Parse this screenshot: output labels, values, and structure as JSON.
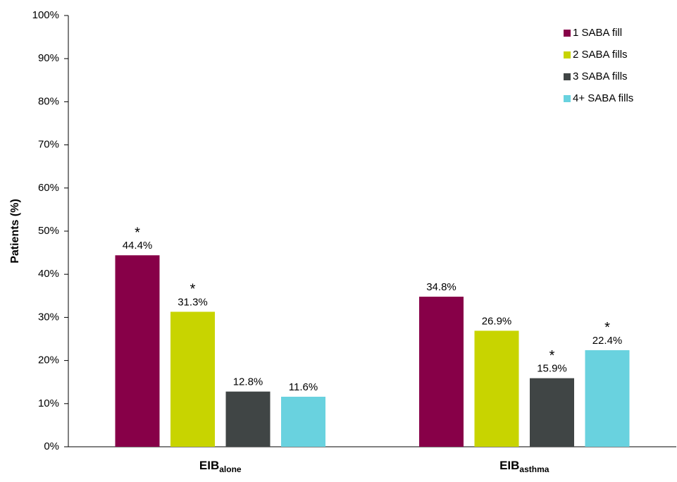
{
  "chart_data": {
    "type": "bar",
    "y_label": "Patients (%)",
    "categories": [
      {
        "text": "EIB",
        "subscript": "alone"
      },
      {
        "text": "EIB",
        "subscript": "asthma"
      }
    ],
    "series": [
      {
        "name": "1 SABA fill",
        "color": "#870048",
        "values": [
          44.4,
          34.8
        ],
        "value_labels": [
          "44.4%",
          "34.8%"
        ],
        "markers": [
          "*",
          null
        ]
      },
      {
        "name": "2 SABA fills",
        "color": "#c8d400",
        "values": [
          31.3,
          26.9
        ],
        "value_labels": [
          "31.3%",
          "26.9%"
        ],
        "markers": [
          "*",
          null
        ]
      },
      {
        "name": "3 SABA fills",
        "color": "#404545",
        "values": [
          12.8,
          15.9
        ],
        "value_labels": [
          "12.8%",
          "15.9%"
        ],
        "markers": [
          null,
          "*"
        ]
      },
      {
        "name": "4+ SABA fills",
        "color": "#69d2df",
        "values": [
          11.6,
          22.4
        ],
        "value_labels": [
          "11.6%",
          "22.4%"
        ],
        "markers": [
          null,
          "*"
        ]
      }
    ],
    "ylim": [
      0,
      100
    ],
    "yticks": [
      {
        "value": 0,
        "label": "0%"
      },
      {
        "value": 10,
        "label": "10%"
      },
      {
        "value": 20,
        "label": "20%"
      },
      {
        "value": 30,
        "label": "30%"
      },
      {
        "value": 40,
        "label": "40%"
      },
      {
        "value": 50,
        "label": "50%"
      },
      {
        "value": 60,
        "label": "60%"
      },
      {
        "value": 70,
        "label": "70%"
      },
      {
        "value": 80,
        "label": "80%"
      },
      {
        "value": 90,
        "label": "90%"
      },
      {
        "value": 100,
        "label": "100%"
      }
    ],
    "legend": "top-right"
  }
}
